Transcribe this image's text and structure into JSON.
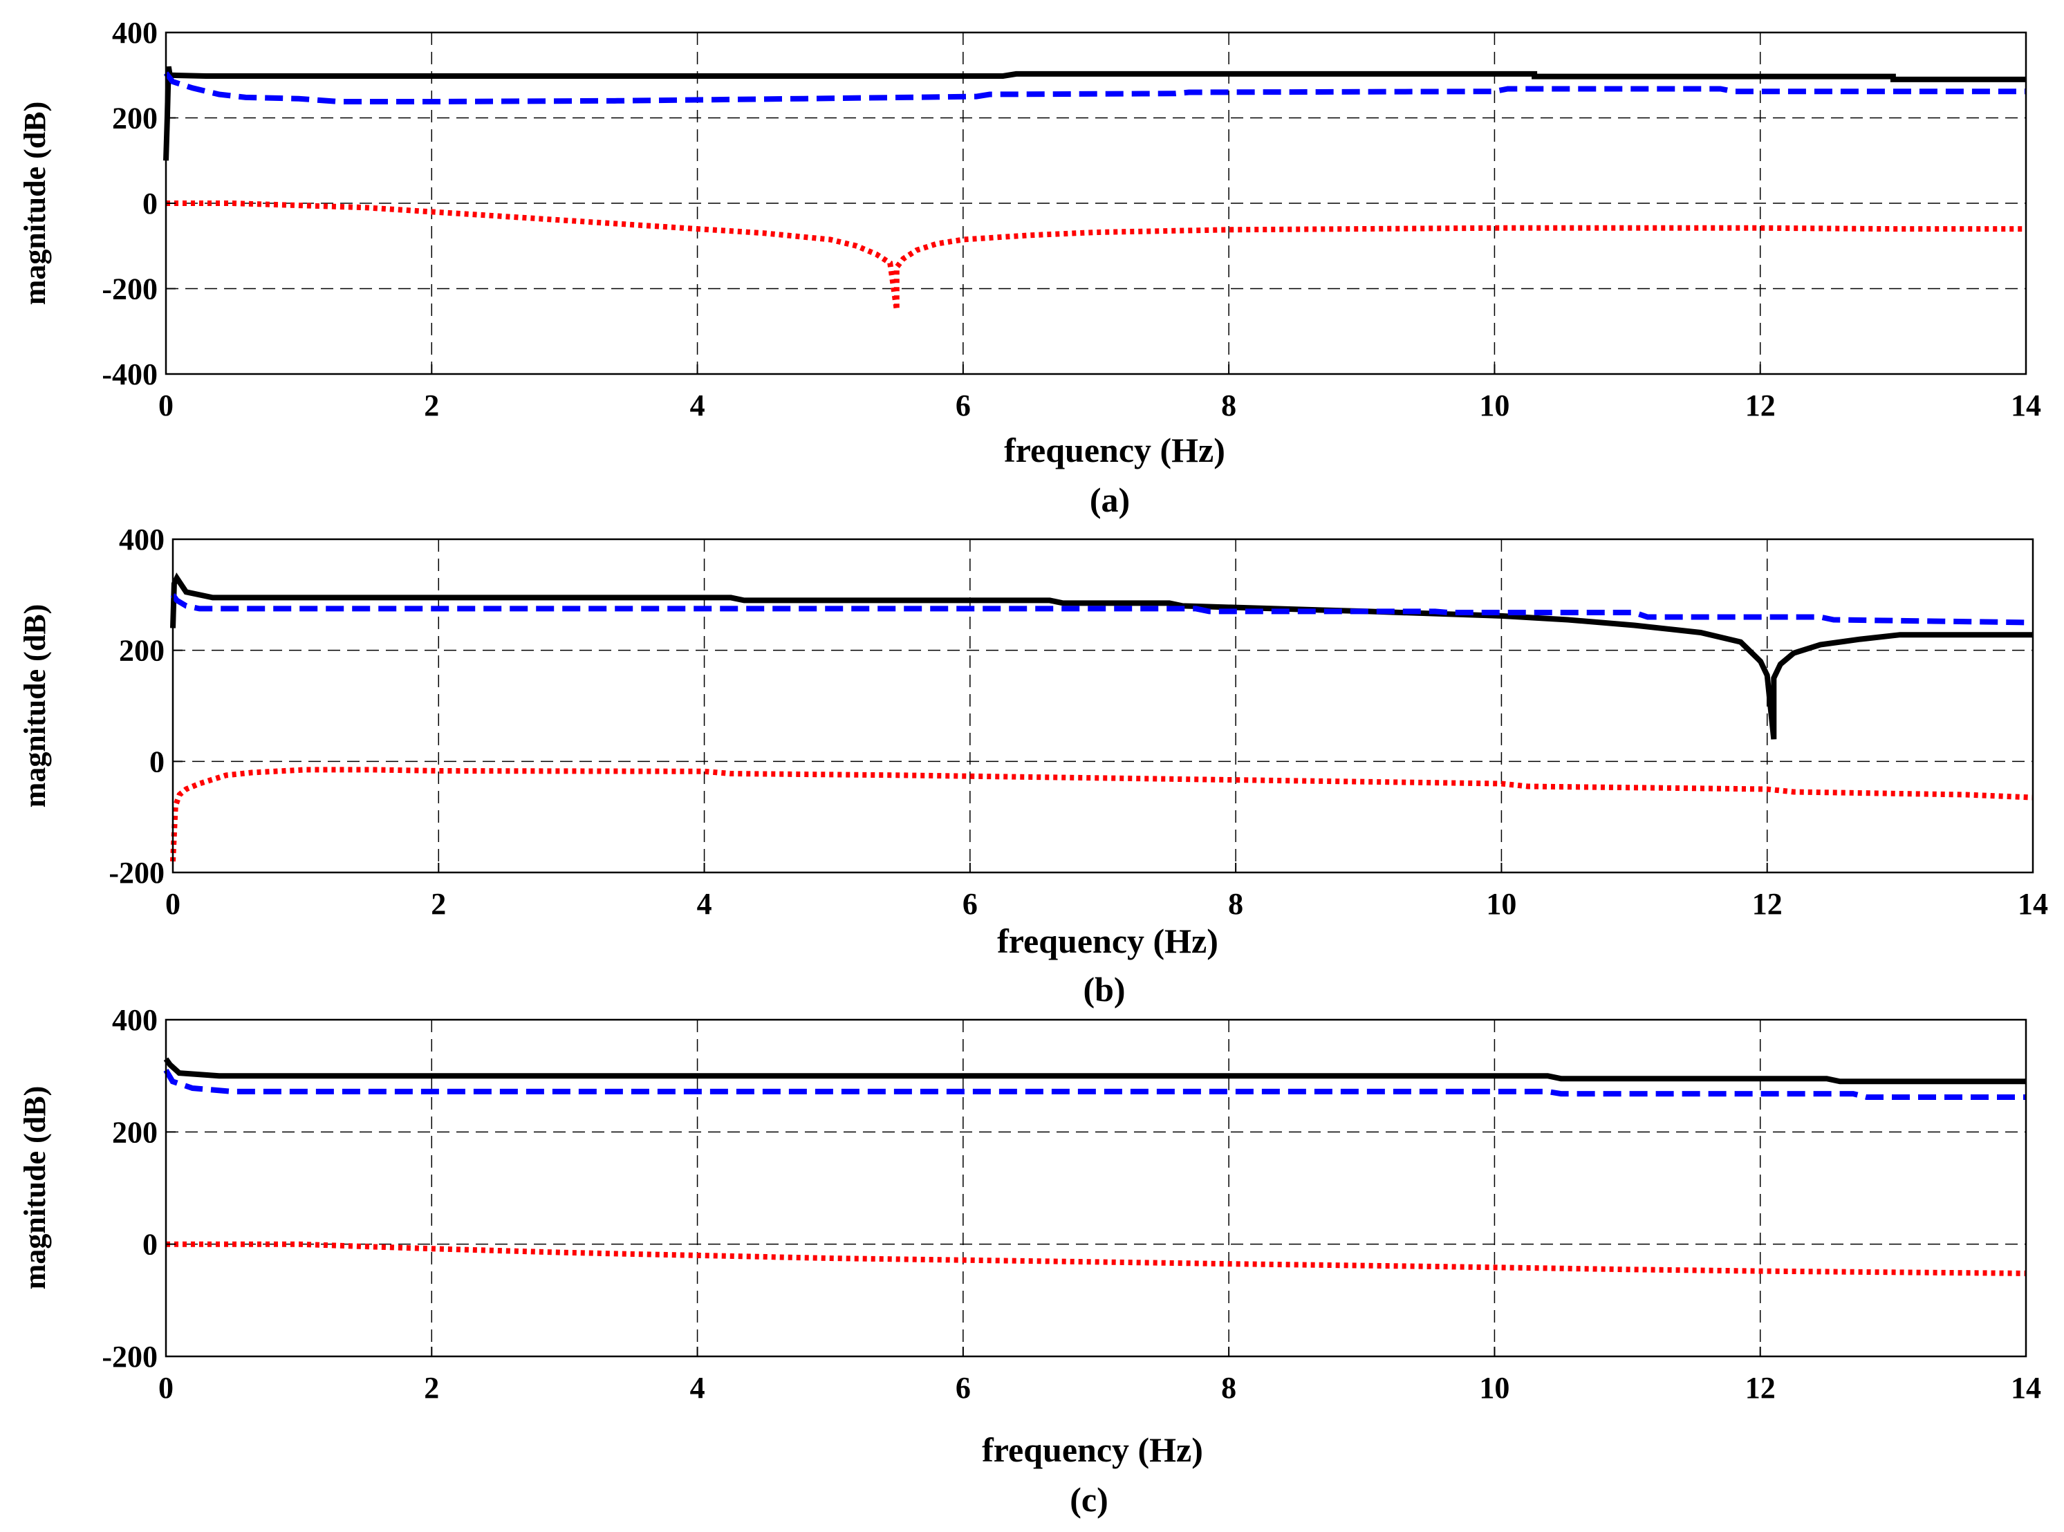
{
  "colors": {
    "black": "#000000",
    "blue": "#0000ff",
    "red": "#ff0000",
    "grid": "#000000"
  },
  "chart_data": [
    {
      "type": "line",
      "id": "a",
      "caption": "(a)",
      "xlabel": "frequency (Hz)",
      "ylabel": "magnitude (dB)",
      "xlim": [
        0,
        14
      ],
      "ylim": [
        -400,
        400
      ],
      "xticks": [
        0,
        2,
        4,
        6,
        8,
        10,
        12,
        14
      ],
      "yticks": [
        -400,
        -200,
        0,
        200,
        400
      ],
      "xtick_labels": [
        "0",
        "2",
        "4",
        "6",
        "8",
        "10",
        "12",
        "14"
      ],
      "ytick_labels": [
        "-400",
        "-200",
        "0",
        "200",
        "400"
      ],
      "grid": true,
      "series": [
        {
          "name": "black solid",
          "style": "solid",
          "color": "#000000",
          "x": [
            0,
            0.01,
            0.02,
            0.03,
            0.3,
            6.3,
            6.4,
            10.3,
            10.3,
            13.0,
            13.0,
            14
          ],
          "y": [
            100,
            200,
            320,
            300,
            298,
            298,
            303,
            303,
            297,
            297,
            290,
            290
          ]
        },
        {
          "name": "blue dashed",
          "style": "dashed",
          "color": "#0000ff",
          "x": [
            0,
            0.05,
            0.2,
            0.4,
            0.6,
            1.0,
            1.3,
            2.0,
            3.4,
            4.8,
            6.1,
            6.2,
            7.6,
            7.7,
            10.0,
            10.1,
            11.7,
            11.8,
            14
          ],
          "y": [
            305,
            285,
            270,
            255,
            248,
            245,
            238,
            238,
            240,
            245,
            250,
            255,
            257,
            260,
            262,
            268,
            268,
            262,
            262
          ]
        },
        {
          "name": "red dotted",
          "style": "dotted",
          "color": "#ff0000",
          "x": [
            0,
            0.5,
            1.0,
            1.5,
            2.0,
            2.5,
            3.0,
            3.5,
            4.0,
            4.5,
            5.0,
            5.2,
            5.35,
            5.45,
            5.5,
            5.5,
            5.55,
            5.65,
            5.8,
            6.0,
            6.5,
            7.0,
            8.0,
            10.0,
            12.0,
            13.0,
            14
          ],
          "y": [
            0,
            0,
            -5,
            -10,
            -20,
            -30,
            -40,
            -50,
            -60,
            -70,
            -85,
            -100,
            -120,
            -140,
            -250,
            -150,
            -130,
            -110,
            -95,
            -85,
            -75,
            -68,
            -62,
            -58,
            -58,
            -60,
            -60
          ]
        }
      ]
    },
    {
      "type": "line",
      "id": "b",
      "caption": "(b)",
      "xlabel": "frequency (Hz)",
      "ylabel": "magnitude (dB)",
      "xlim": [
        0,
        14
      ],
      "ylim": [
        -200,
        400
      ],
      "xticks": [
        0,
        2,
        4,
        6,
        8,
        10,
        12,
        14
      ],
      "yticks": [
        -200,
        0,
        200,
        400
      ],
      "xtick_labels": [
        "0",
        "2",
        "4",
        "6",
        "8",
        "10",
        "12",
        "14"
      ],
      "ytick_labels": [
        "-200",
        "0",
        "200",
        "400"
      ],
      "grid": true,
      "series": [
        {
          "name": "black solid",
          "style": "solid",
          "color": "#000000",
          "x": [
            0,
            0.01,
            0.03,
            0.1,
            0.3,
            4.2,
            4.3,
            6.6,
            6.7,
            7.5,
            7.6,
            9.0,
            10.0,
            10.5,
            11.0,
            11.5,
            11.8,
            11.95,
            12.0,
            12.05,
            12.05,
            12.1,
            12.2,
            12.4,
            12.7,
            13.0,
            14
          ],
          "y": [
            240,
            320,
            330,
            305,
            295,
            295,
            290,
            290,
            285,
            285,
            280,
            270,
            262,
            255,
            245,
            232,
            215,
            180,
            155,
            40,
            150,
            175,
            195,
            210,
            220,
            228,
            228
          ]
        },
        {
          "name": "blue dashed",
          "style": "dashed",
          "color": "#0000ff",
          "x": [
            0,
            0.03,
            0.1,
            0.2,
            7.7,
            7.8,
            9.5,
            9.6,
            11.0,
            11.1,
            12.4,
            12.5,
            14
          ],
          "y": [
            300,
            290,
            280,
            275,
            275,
            270,
            270,
            268,
            268,
            260,
            260,
            255,
            250
          ]
        },
        {
          "name": "red dotted",
          "style": "dotted",
          "color": "#ff0000",
          "x": [
            0,
            0.02,
            0.05,
            0.1,
            0.2,
            0.4,
            0.6,
            1.0,
            1.5,
            2.0,
            4.0,
            4.2,
            5.5,
            7.0,
            8.5,
            10.0,
            10.2,
            12.0,
            12.2,
            13.5,
            14
          ],
          "y": [
            -180,
            -80,
            -60,
            -50,
            -40,
            -25,
            -20,
            -15,
            -15,
            -17,
            -18,
            -22,
            -25,
            -30,
            -35,
            -40,
            -45,
            -50,
            -55,
            -60,
            -65
          ]
        }
      ]
    },
    {
      "type": "line",
      "id": "c",
      "caption": "(c)",
      "xlabel": "frequency (Hz)",
      "ylabel": "magnitude (dB)",
      "xlim": [
        0,
        14
      ],
      "ylim": [
        -200,
        400
      ],
      "xticks": [
        0,
        2,
        4,
        6,
        8,
        10,
        12,
        14
      ],
      "yticks": [
        -200,
        0,
        200,
        400
      ],
      "xtick_labels": [
        "0",
        "2",
        "4",
        "6",
        "8",
        "10",
        "12",
        "14"
      ],
      "ytick_labels": [
        "-200",
        "0",
        "200",
        "400"
      ],
      "grid": true,
      "series": [
        {
          "name": "black solid",
          "style": "solid",
          "color": "#000000",
          "x": [
            0,
            0.03,
            0.1,
            0.4,
            10.4,
            10.5,
            12.5,
            12.6,
            14
          ],
          "y": [
            330,
            320,
            305,
            300,
            300,
            295,
            295,
            290,
            290
          ]
        },
        {
          "name": "blue dashed",
          "style": "dashed",
          "color": "#0000ff",
          "x": [
            0,
            0.05,
            0.2,
            0.5,
            10.4,
            10.5,
            12.7,
            12.8,
            14
          ],
          "y": [
            310,
            290,
            278,
            272,
            272,
            268,
            268,
            262,
            262
          ]
        },
        {
          "name": "red dotted",
          "style": "dotted",
          "color": "#ff0000",
          "x": [
            0,
            1.0,
            1.6,
            2.0,
            3.0,
            4.0,
            5.0,
            6.5,
            8.0,
            9.6,
            11.0,
            12.0,
            13.0,
            14
          ],
          "y": [
            0,
            0,
            -5,
            -8,
            -15,
            -20,
            -25,
            -30,
            -35,
            -40,
            -45,
            -48,
            -50,
            -52
          ]
        }
      ]
    }
  ]
}
